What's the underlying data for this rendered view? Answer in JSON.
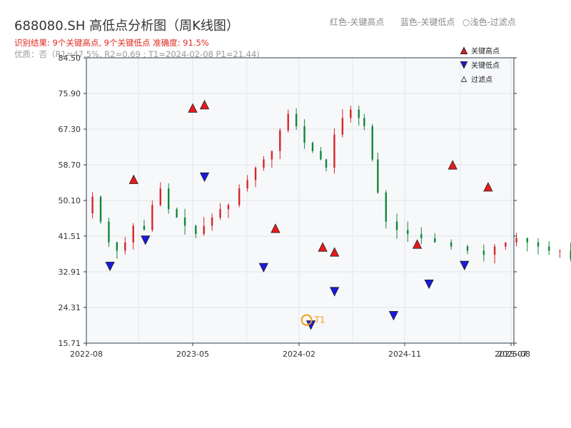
{
  "header": {
    "title": "688080.SH 高低点分析图（周K线图）",
    "result_line": "识别结果: 9个关键高点, 9个关键低点  准确度: 91.5%",
    "quality_line": "优质：否（R1=47.5%, R2=0.69 ; T1=2024-02-08 P1=21.44)"
  },
  "top_legend": {
    "red": "红色-关键高点",
    "blue": "蓝色-关键低点",
    "light": "○浅色-过滤点"
  },
  "colors": {
    "up": "#d62728",
    "down": "#12873a",
    "high_marker": "#e8191b",
    "low_marker": "#1a1adc",
    "t1": "#f39c12",
    "plot_bg": "#f7f8fa"
  },
  "chart_data": {
    "type": "candlestick",
    "y_ticks": [
      "84.50",
      "75.90",
      "67.30",
      "58.70",
      "50.10",
      "41.51",
      "32.91",
      "24.31",
      "15.71"
    ],
    "x_ticks": [
      "2022-08",
      "2023-05",
      "2024-02",
      "2024-11",
      "2025-07",
      "2025-08"
    ],
    "ylim": [
      15.71,
      84.5
    ],
    "legend": {
      "high": "关键高点",
      "low": "关键低点",
      "filtered": "过滤点"
    },
    "t1_label": "T1",
    "key_highs": [
      {
        "date": "2022-11",
        "price": 53.8
      },
      {
        "date": "2023-04",
        "price": 71.0
      },
      {
        "date": "2023-05",
        "price": 71.8
      },
      {
        "date": "2023-11",
        "price": 42.0
      },
      {
        "date": "2024-03",
        "price": 37.5
      },
      {
        "date": "2024-04",
        "price": 36.3
      },
      {
        "date": "2024-11",
        "price": 38.2
      },
      {
        "date": "2025-02",
        "price": 57.3
      },
      {
        "date": "2025-05",
        "price": 52.0
      }
    ],
    "key_lows": [
      {
        "date": "2022-09",
        "price": 35.6
      },
      {
        "date": "2022-12",
        "price": 41.9
      },
      {
        "date": "2023-05",
        "price": 57.1
      },
      {
        "date": "2023-10",
        "price": 35.3
      },
      {
        "date": "2024-02",
        "price": 21.44
      },
      {
        "date": "2024-04",
        "price": 29.5
      },
      {
        "date": "2024-09",
        "price": 23.7
      },
      {
        "date": "2024-12",
        "price": 31.3
      },
      {
        "date": "2025-03",
        "price": 35.8
      }
    ]
  }
}
